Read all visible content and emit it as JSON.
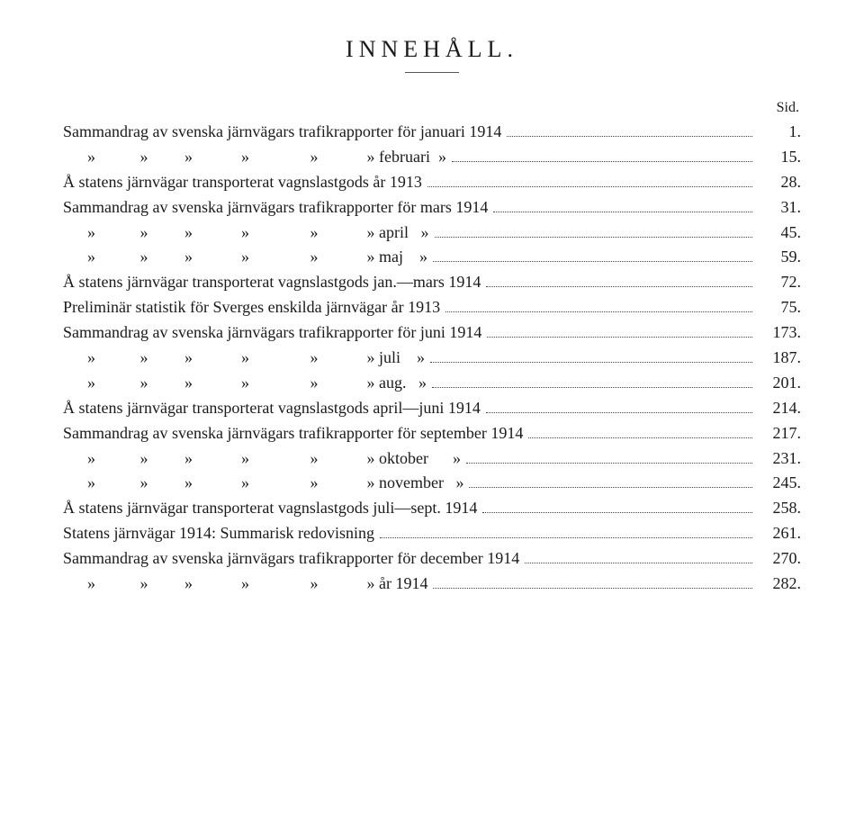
{
  "title": "INNEHÅLL.",
  "sid_label": "Sid.",
  "entries": [
    {
      "text": "Sammandrag av svenska järnvägars trafikrapporter för januari 1914",
      "page": "1."
    },
    {
      "text": "      »           »         »            »               »            » februari  »",
      "page": "15."
    },
    {
      "text": "Å statens järnvägar transporterat vagnslastgods år 1913",
      "page": "28."
    },
    {
      "text": "Sammandrag av svenska järnvägars trafikrapporter för mars 1914",
      "page": "31."
    },
    {
      "text": "      »           »         »            »               »            » april   »",
      "page": "45."
    },
    {
      "text": "      »           »         »            »               »            » maj    »",
      "page": "59."
    },
    {
      "text": "Å statens järnvägar transporterat vagnslastgods jan.—mars 1914",
      "page": "72."
    },
    {
      "text": "Preliminär statistik för Sverges enskilda järnvägar år 1913",
      "page": "75."
    },
    {
      "text": "Sammandrag av svenska järnvägars trafikrapporter för juni 1914",
      "page": "173."
    },
    {
      "text": "      »           »         »            »               »            » juli    »",
      "page": "187."
    },
    {
      "text": "      »           »         »            »               »            » aug.   »",
      "page": "201."
    },
    {
      "text": "Å statens järnvägar transporterat vagnslastgods april—juni 1914",
      "page": "214."
    },
    {
      "text": "Sammandrag av svenska järnvägars trafikrapporter för september 1914",
      "page": "217."
    },
    {
      "text": "      »           »         »            »               »            » oktober      »",
      "page": "231."
    },
    {
      "text": "      »           »         »            »               »            » november   »",
      "page": "245."
    },
    {
      "text": "Å statens järnvägar transporterat vagnslastgods juli—sept. 1914",
      "page": "258."
    },
    {
      "text": "Statens järnvägar 1914: Summarisk redovisning",
      "page": "261."
    },
    {
      "text": "Sammandrag av svenska järnvägars trafikrapporter för december 1914",
      "page": "270."
    },
    {
      "text": "      »           »         »            »               »            » år 1914",
      "page": "282."
    }
  ]
}
